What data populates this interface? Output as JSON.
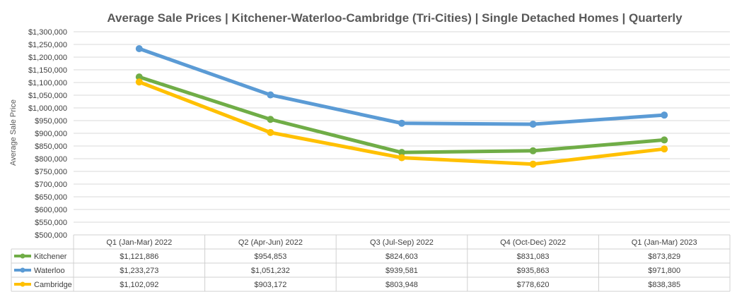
{
  "chart_data": {
    "type": "line",
    "title": "Average Sale Prices | Kitchener-Waterloo-Cambridge (Tri-Cities) | Single Detached Homes | Quarterly",
    "ylabel": "Average Sale Price",
    "xlabel": "",
    "ylim": [
      500000,
      1300000
    ],
    "ytick_step": 50000,
    "ytick_labels": [
      "$500,000",
      "$550,000",
      "$600,000",
      "$650,000",
      "$700,000",
      "$750,000",
      "$800,000",
      "$850,000",
      "$900,000",
      "$950,000",
      "$1,000,000",
      "$1,050,000",
      "$1,100,000",
      "$1,150,000",
      "$1,200,000",
      "$1,250,000",
      "$1,300,000"
    ],
    "grid": true,
    "legend": "data-table",
    "categories": [
      "Q1 (Jan-Mar) 2022",
      "Q2 (Apr-Jun) 2022",
      "Q3 (Jul-Sep) 2022",
      "Q4 (Oct-Dec) 2022",
      "Q1 (Jan-Mar) 2023"
    ],
    "series": [
      {
        "name": "Kitchener",
        "color": "#70ad47",
        "values": [
          1121886,
          954853,
          824603,
          831083,
          873829
        ],
        "labels": [
          "$1,121,886",
          "$954,853",
          "$824,603",
          "$831,083",
          "$873,829"
        ]
      },
      {
        "name": "Waterloo",
        "color": "#5b9bd5",
        "values": [
          1233273,
          1051232,
          939581,
          935863,
          971800
        ],
        "labels": [
          "$1,233,273",
          "$1,051,232",
          "$939,581",
          "$935,863",
          "$971,800"
        ]
      },
      {
        "name": "Cambridge",
        "color": "#ffc000",
        "values": [
          1102092,
          903172,
          803948,
          778620,
          838385
        ],
        "labels": [
          "$1,102,092",
          "$903,172",
          "$803,948",
          "$778,620",
          "$838,385"
        ]
      }
    ]
  }
}
